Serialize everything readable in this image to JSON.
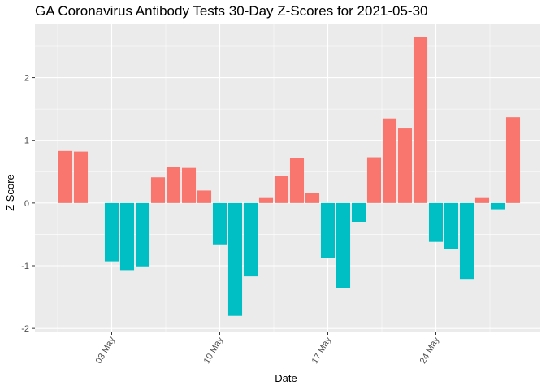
{
  "chart_data": {
    "type": "bar",
    "title": "GA Coronavirus Antibody Tests 30-Day Z-Scores for 2021-05-30",
    "xlabel": "Date",
    "ylabel": "Z Score",
    "start_date": "2021-04-30",
    "x_tick_labels": [
      "03 May",
      "10 May",
      "17 May",
      "24 May"
    ],
    "y_ticks": [
      -2,
      -1,
      0,
      1,
      2
    ],
    "ylim": [
      -2.05,
      2.85
    ],
    "grid": true,
    "legend": "none",
    "colors": {
      "positive": "#F8766D",
      "negative": "#00BFC4",
      "panel": "#EBEBEB",
      "grid": "#FFFFFF"
    },
    "x": [
      "2021-04-30",
      "2021-05-01",
      "2021-05-02",
      "2021-05-03",
      "2021-05-04",
      "2021-05-05",
      "2021-05-06",
      "2021-05-07",
      "2021-05-08",
      "2021-05-09",
      "2021-05-10",
      "2021-05-11",
      "2021-05-12",
      "2021-05-13",
      "2021-05-14",
      "2021-05-15",
      "2021-05-16",
      "2021-05-17",
      "2021-05-18",
      "2021-05-19",
      "2021-05-20",
      "2021-05-21",
      "2021-05-22",
      "2021-05-23",
      "2021-05-24",
      "2021-05-25",
      "2021-05-26",
      "2021-05-27",
      "2021-05-28",
      "2021-05-29",
      "2021-05-30"
    ],
    "values": [
      0.83,
      0.82,
      0.0,
      -0.93,
      -1.07,
      -1.01,
      0.41,
      0.57,
      0.56,
      0.2,
      -0.66,
      -1.8,
      -1.17,
      0.08,
      0.43,
      0.72,
      0.16,
      -0.88,
      -1.36,
      -0.3,
      0.73,
      1.35,
      1.19,
      2.65,
      -0.62,
      -0.74,
      -1.21,
      0.08,
      -0.1,
      1.37,
      0.0
    ]
  }
}
